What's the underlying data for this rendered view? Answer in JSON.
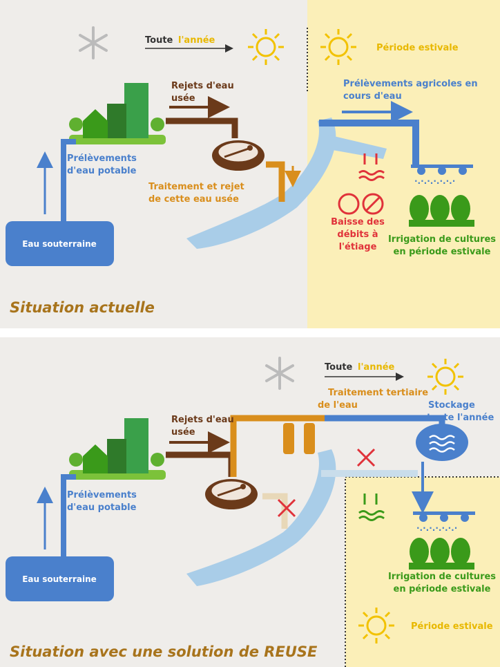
{
  "panel1": {
    "toute": "Toute",
    "lannee": "l'année",
    "periode_estivale": "Période estivale",
    "rejets": [
      "Rejets d'eau",
      "usée"
    ],
    "prelevements_agricoles": [
      "Prélèvements agricoles en",
      "cours d'eau"
    ],
    "prelevements_potable": [
      "Prélèvements",
      "d'eau potable"
    ],
    "traitement": [
      "Traitement et rejet",
      "de cette eau usée"
    ],
    "eau_souterraine": "Eau souterraine",
    "baisse": [
      "Baisse des",
      "débits à",
      "l'étiage"
    ],
    "irrigation": [
      "Irrigation de cultures",
      "en période estivale"
    ],
    "situation": "Situation actuelle"
  },
  "panel2": {
    "toute": "Toute",
    "lannee": "l'année",
    "traitement_tertiaire": [
      "Traitement tertiaire",
      "de l'eau"
    ],
    "stockage": [
      "Stockage",
      "toute l'année"
    ],
    "rejets": [
      "Rejets d'eau",
      "usée"
    ],
    "prelevements_potable": [
      "Prélèvements",
      "d'eau potable"
    ],
    "eau_souterraine": "Eau souterraine",
    "irrigation": [
      "Irrigation de cultures",
      "en période estivale"
    ],
    "periode_estivale": "Période estivale",
    "situation": "Situation avec une solution de REUSE"
  }
}
